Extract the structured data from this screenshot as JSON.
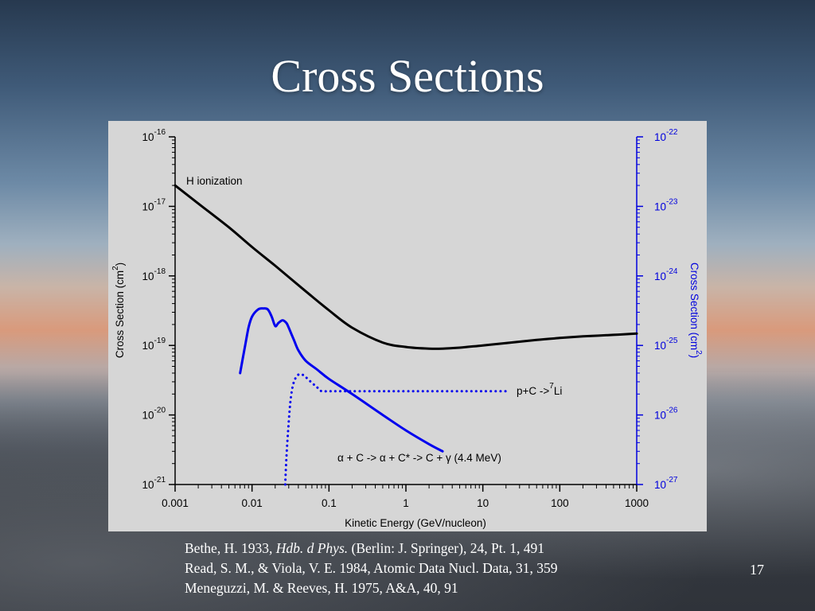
{
  "slide": {
    "title": "Cross Sections",
    "page_number": "17",
    "references": [
      {
        "before": "Bethe, H. 1933, ",
        "italic": "Hdb. d Phys.",
        "after": " (Berlin: J. Springer), 24, Pt. 1, 491"
      },
      {
        "before": "Read, S. M., & Viola, V. E. 1984, Atomic Data Nucl. Data, 31, 359",
        "italic": "",
        "after": ""
      },
      {
        "before": "Meneguzzi, M. & Reeves, H. 1975, A&A, 40, 91",
        "italic": "",
        "after": ""
      }
    ]
  },
  "chart_data": {
    "type": "line",
    "xlabel": "Kinetic Energy (GeV/nucleon)",
    "ylabel_left": {
      "text": "Cross Section (cm",
      "sup": "2",
      "close": ")"
    },
    "ylabel_right": {
      "text": "Cross Section (cm",
      "sup": "2",
      "close": ")"
    },
    "x_scale": "log",
    "xlim": [
      0.001,
      1000
    ],
    "x_ticks": [
      "0.001",
      "0.01",
      "0.1",
      "1",
      "10",
      "100",
      "1000"
    ],
    "y_left_scale": "log",
    "ylim_left": [
      1e-21,
      1e-16
    ],
    "y_left_ticks": [
      {
        "base": "10",
        "exp": "-16"
      },
      {
        "base": "10",
        "exp": "-17"
      },
      {
        "base": "10",
        "exp": "-18"
      },
      {
        "base": "10",
        "exp": "-19"
      },
      {
        "base": "10",
        "exp": "-20"
      },
      {
        "base": "10",
        "exp": "-21"
      }
    ],
    "y_right_scale": "log",
    "ylim_right": [
      1e-27,
      1e-22
    ],
    "y_right_ticks": [
      {
        "base": "10",
        "exp": "-22"
      },
      {
        "base": "10",
        "exp": "-23"
      },
      {
        "base": "10",
        "exp": "-24"
      },
      {
        "base": "10",
        "exp": "-25"
      },
      {
        "base": "10",
        "exp": "-26"
      },
      {
        "base": "10",
        "exp": "-27"
      }
    ],
    "grid": false,
    "colors": {
      "axis_left": "#000000",
      "axis_right": "#0000dd",
      "series_black": "#000000",
      "series_blue": "#0000ee",
      "panel": "#d6d6d6"
    },
    "series": [
      {
        "name": "H ionization",
        "axis": "left",
        "color": "#000000",
        "style": "solid",
        "x": [
          0.001,
          0.002,
          0.005,
          0.01,
          0.02,
          0.05,
          0.1,
          0.2,
          0.5,
          1,
          2,
          3,
          5,
          10,
          20,
          50,
          100,
          200,
          500,
          1000
        ],
        "y": [
          2e-17,
          1.1e-17,
          5e-18,
          2.6e-18,
          1.4e-18,
          6e-19,
          3.2e-19,
          1.8e-19,
          1.1e-19,
          9.5e-20,
          9e-20,
          9e-20,
          9.3e-20,
          1e-19,
          1.08e-19,
          1.2e-19,
          1.28e-19,
          1.35e-19,
          1.42e-19,
          1.48e-19
        ]
      },
      {
        "name": "α + C -> α + C* -> C + γ (4.4 MeV)",
        "label_parts": {
          "a1": "α",
          "t1": " + C -> ",
          "a2": "α",
          "t2": " + C* -> C + ",
          "g": "γ",
          "t3": " (4.4 MeV)"
        },
        "axis": "right",
        "color": "#0000ee",
        "style": "solid",
        "x": [
          0.007,
          0.008,
          0.009,
          0.01,
          0.012,
          0.014,
          0.016,
          0.018,
          0.02,
          0.022,
          0.025,
          0.028,
          0.03,
          0.035,
          0.04,
          0.05,
          0.07,
          0.1,
          0.2,
          0.5,
          1,
          2,
          3
        ],
        "y": [
          4e-26,
          9e-26,
          1.8e-25,
          2.6e-25,
          3.3e-25,
          3.4e-25,
          3.3e-25,
          2.6e-25,
          1.9e-25,
          2.1e-25,
          2.3e-25,
          2.1e-25,
          1.8e-25,
          1.2e-25,
          8.5e-26,
          6e-26,
          4.5e-26,
          3.3e-26,
          2e-26,
          1e-26,
          6e-27,
          3.8e-27,
          3e-27
        ]
      },
      {
        "name": "p+C ->7Li",
        "label_parts": {
          "t1": "p+C ->",
          "sup": "7",
          "t2": "Li"
        },
        "axis": "right",
        "color": "#0000ee",
        "style": "dotted",
        "x": [
          0.027,
          0.028,
          0.03,
          0.032,
          0.035,
          0.04,
          0.045,
          0.05,
          0.06,
          0.07,
          0.08,
          0.1,
          0.2,
          0.5,
          1,
          2,
          5,
          10,
          20
        ],
        "y": [
          1e-27,
          2.5e-27,
          8e-27,
          1.8e-26,
          3e-26,
          3.8e-26,
          3.8e-26,
          3.5e-26,
          2.9e-26,
          2.5e-26,
          2.2e-26,
          2.2e-26,
          2.2e-26,
          2.2e-26,
          2.2e-26,
          2.2e-26,
          2.2e-26,
          2.2e-26,
          2.2e-26
        ]
      }
    ]
  }
}
